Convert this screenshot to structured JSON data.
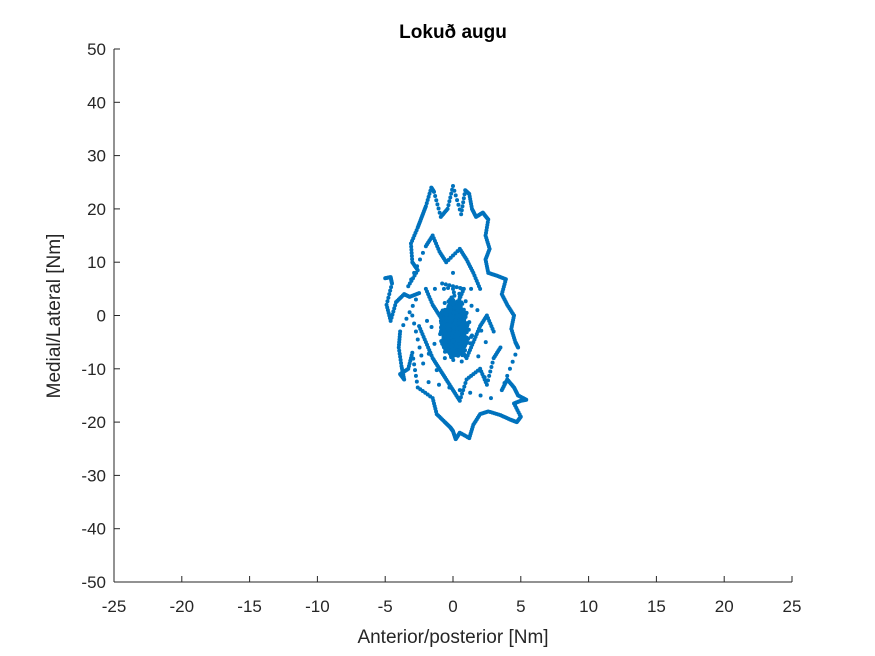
{
  "chart_data": {
    "type": "scatter",
    "title": "Lokuð augu",
    "xlabel": "Anterior/posterior [Nm]",
    "ylabel": "Medial/Lateral [Nm]",
    "xlim": [
      -25,
      25
    ],
    "ylim": [
      -50,
      50
    ],
    "xticks": [
      -25,
      -20,
      -15,
      -10,
      -5,
      0,
      5,
      10,
      15,
      20,
      25
    ],
    "yticks": [
      -50,
      -40,
      -30,
      -20,
      -10,
      0,
      10,
      20,
      30,
      40,
      50
    ],
    "xtick_labels": [
      "-25",
      "-20",
      "-15",
      "-10",
      "-5",
      "0",
      "5",
      "10",
      "15",
      "20",
      "25"
    ],
    "ytick_labels": [
      "-50",
      "-40",
      "-30",
      "-20",
      "-10",
      "0",
      "10",
      "20",
      "30",
      "40",
      "50"
    ],
    "grid": false,
    "marker_color": "#0072BD",
    "series": [
      {
        "name": "",
        "points": [
          [
            -5.0,
            7.0
          ],
          [
            -4.6,
            7.2
          ],
          [
            -4.5,
            6.0
          ],
          [
            -4.9,
            2.0
          ],
          [
            -4.6,
            -1.0
          ],
          [
            -4.2,
            2.5
          ],
          [
            -3.6,
            4.0
          ],
          [
            -3.2,
            3.5
          ],
          [
            -2.5,
            4.2
          ],
          [
            -3.9,
            -3.0
          ],
          [
            -4.0,
            -6.0
          ],
          [
            -3.8,
            -9.5
          ],
          [
            -3.6,
            -12.0
          ],
          [
            -3.9,
            -11.0
          ],
          [
            -3.3,
            -10.0
          ],
          [
            -3.0,
            -7.0
          ],
          [
            -2.6,
            -13.5
          ],
          [
            -1.5,
            -15.5
          ],
          [
            -1.2,
            -18.5
          ],
          [
            -0.6,
            -20.0
          ],
          [
            -0.2,
            -21.0
          ],
          [
            0.0,
            -21.7
          ],
          [
            0.2,
            -23.2
          ],
          [
            0.5,
            -22.0
          ],
          [
            1.2,
            -23.0
          ],
          [
            1.5,
            -20.5
          ],
          [
            2.0,
            -18.5
          ],
          [
            2.6,
            -18.0
          ],
          [
            3.5,
            -18.7
          ],
          [
            4.2,
            -19.5
          ],
          [
            4.7,
            -20.0
          ],
          [
            5.0,
            -19.0
          ],
          [
            4.5,
            -16.5
          ],
          [
            5.0,
            -16.0
          ],
          [
            5.4,
            -15.8
          ],
          [
            4.8,
            -15.0
          ],
          [
            4.5,
            -13.5
          ],
          [
            4.0,
            -12.0
          ],
          [
            3.6,
            -14.0
          ],
          [
            4.8,
            -6.0
          ],
          [
            4.6,
            -5.0
          ],
          [
            4.3,
            -2.5
          ],
          [
            4.5,
            0.0
          ],
          [
            4.0,
            2.0
          ],
          [
            3.6,
            4.0
          ],
          [
            3.9,
            6.8
          ],
          [
            3.2,
            7.5
          ],
          [
            2.6,
            8.0
          ],
          [
            2.4,
            10.5
          ],
          [
            2.7,
            12.5
          ],
          [
            2.4,
            15.0
          ],
          [
            2.6,
            18.0
          ],
          [
            2.2,
            19.3
          ],
          [
            1.7,
            18.5
          ],
          [
            1.4,
            20.0
          ],
          [
            1.2,
            22.8
          ],
          [
            0.9,
            23.5
          ],
          [
            0.6,
            19.0
          ],
          [
            0.0,
            24.3
          ],
          [
            -0.4,
            20.0
          ],
          [
            -0.9,
            18.5
          ],
          [
            -1.4,
            23.2
          ],
          [
            -1.6,
            24.0
          ],
          [
            -2.0,
            20.5
          ],
          [
            -2.3,
            18.5
          ],
          [
            -2.6,
            16.5
          ],
          [
            -3.1,
            13.5
          ],
          [
            -3.0,
            10.0
          ],
          [
            -2.6,
            8.5
          ],
          [
            -3.3,
            5.5
          ],
          [
            -2.0,
            13.0
          ],
          [
            -1.5,
            15.0
          ],
          [
            -1.0,
            12.0
          ],
          [
            -0.5,
            10.0
          ],
          [
            0.5,
            12.5
          ],
          [
            1.0,
            10.5
          ],
          [
            1.5,
            8.0
          ],
          [
            2.0,
            5.0
          ],
          [
            -2.0,
            5.0
          ],
          [
            -1.5,
            2.0
          ],
          [
            -1.0,
            0.0
          ],
          [
            -0.5,
            -2.0
          ],
          [
            0.0,
            -4.0
          ],
          [
            0.5,
            -6.0
          ],
          [
            1.0,
            -8.0
          ],
          [
            1.5,
            -5.0
          ],
          [
            2.0,
            -2.0
          ],
          [
            2.5,
            0.0
          ],
          [
            3.0,
            -3.0
          ],
          [
            -2.5,
            -2.0
          ],
          [
            -2.0,
            -5.0
          ],
          [
            -1.5,
            -8.0
          ],
          [
            -1.0,
            -10.0
          ],
          [
            -0.5,
            -12.0
          ],
          [
            0.0,
            -14.0
          ],
          [
            0.5,
            -16.0
          ],
          [
            1.0,
            -12.0
          ],
          [
            2.0,
            -10.0
          ],
          [
            2.5,
            -13.0
          ],
          [
            3.0,
            -8.0
          ],
          [
            3.5,
            -6.0
          ],
          [
            -3.0,
            0.0
          ],
          [
            -2.2,
            -9.0
          ],
          [
            0.3,
            2.0
          ],
          [
            0.8,
            5.0
          ],
          [
            -0.8,
            6.0
          ],
          [
            1.8,
            1.0
          ],
          [
            -1.8,
            -12.5
          ],
          [
            2.8,
            -15.5
          ],
          [
            0.0,
            8.0
          ]
        ]
      }
    ]
  }
}
